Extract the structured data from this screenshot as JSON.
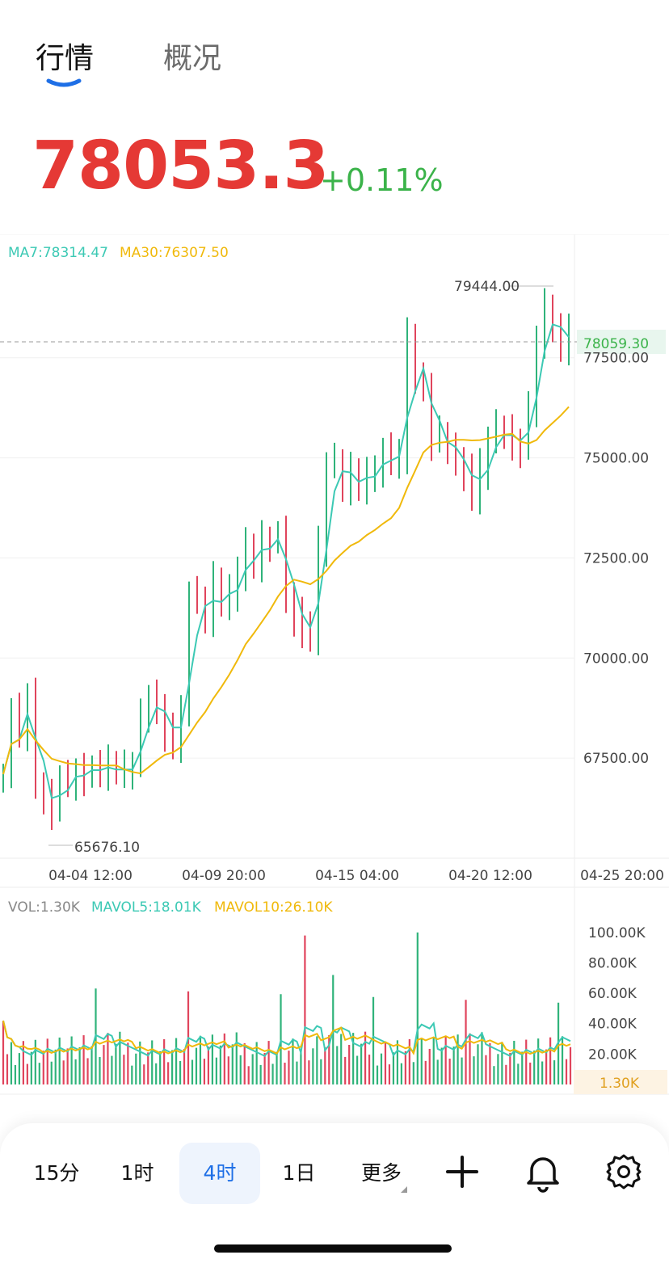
{
  "tabs": [
    {
      "label": "行情",
      "active": true
    },
    {
      "label": "概况",
      "active": false
    }
  ],
  "price": {
    "last": "78053.3",
    "change_pct": "+0.11%"
  },
  "colors": {
    "up": "#2fb37a",
    "down": "#e0445c",
    "ma7": "#3cc9b4",
    "ma30": "#f0b90b",
    "price_red": "#e53935",
    "change_green": "#3bb34a",
    "accent": "#1e6fe6"
  },
  "indicators": {
    "ma7_label": "MA7:78314.47",
    "ma30_label": "MA30:76307.50",
    "vol_label": "VOL:1.30K",
    "mavol5_label": "MAVOL5:18.01K",
    "mavol10_label": "MAVOL10:26.10K"
  },
  "chart_data": {
    "type": "candlestick",
    "y_axis": {
      "ticks": [
        "77500.00",
        "75000.00",
        "72500.00",
        "70000.00",
        "67500.00"
      ],
      "range": [
        65000,
        80300
      ]
    },
    "x_axis": {
      "ticks": [
        "04-04 12:00",
        "04-09 20:00",
        "04-15 04:00",
        "04-20 12:00",
        "04-25 20:00"
      ]
    },
    "high_label": "79444.00",
    "low_label": "65676.10",
    "current_price_label": "78059.30",
    "vol_axis": {
      "ticks": [
        "100.00K",
        "80.00K",
        "60.00K",
        "40.00K",
        "20.00K"
      ],
      "range": [
        0,
        110000
      ],
      "current_label": "1.30K"
    },
    "closes": [
      67100,
      68600,
      68200,
      69000,
      66800,
      66500,
      66200,
      67000,
      66900,
      67200,
      67100,
      67300,
      67200,
      67300,
      67150,
      67200,
      67300,
      68500,
      69000,
      68800,
      68200,
      67800,
      68800,
      71500,
      71400,
      71000,
      71900,
      71300,
      71600,
      72200,
      72800,
      72300,
      73000,
      72900,
      73000,
      71500,
      71000,
      70800,
      70500,
      72800,
      74800,
      74900,
      74300,
      74700,
      74200,
      74600,
      74800,
      75100,
      74900,
      75100,
      78000,
      76900,
      76800,
      75400,
      75600,
      75200,
      75000,
      74700,
      74000,
      74700,
      75400,
      75700,
      75600,
      75400,
      75300,
      76200,
      78000,
      78800,
      78200,
      77800,
      78053
    ]
  },
  "bottom_bar": {
    "intervals": [
      "15分",
      "1时",
      "4时",
      "1日",
      "更多"
    ],
    "active_interval": "4时",
    "icons": [
      "plus-icon",
      "bell-icon",
      "gear-icon"
    ]
  }
}
